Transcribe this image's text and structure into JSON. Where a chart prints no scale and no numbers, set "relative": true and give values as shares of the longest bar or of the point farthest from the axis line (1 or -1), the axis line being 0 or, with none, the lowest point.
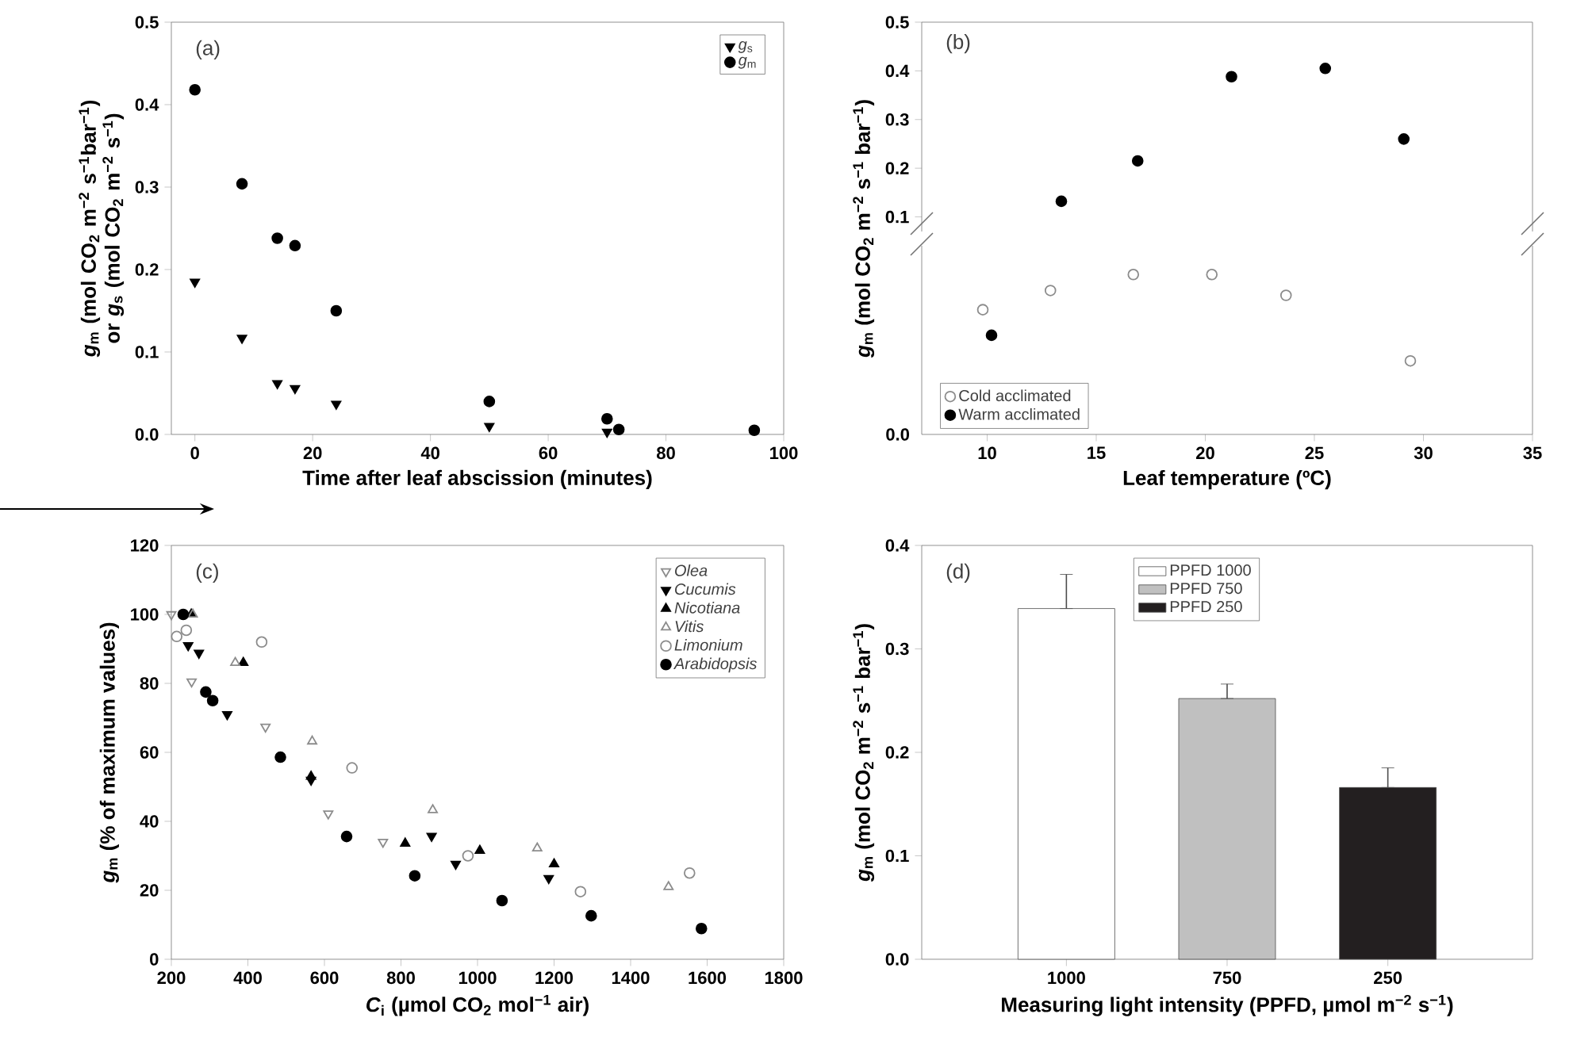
{
  "chart_data": [
    {
      "type": "scatter",
      "annotations": [
        "(a)"
      ],
      "xlabel": "Time after leaf abscission (minutes)",
      "ylabel": "*g*$_{m}$ (mol CO$_{2}$ m$^{−2}$ s$^{−1}$bar$^{−1}$) or *g*$_{s}$ (mol CO$_{2}$ m$^{−2}$ s$^{−1}$)",
      "xlim": [
        -4,
        100
      ],
      "xticks": [
        0,
        20,
        40,
        60,
        80,
        100
      ],
      "ylim": [
        0,
        0.5
      ],
      "yticks": [
        {
          "value": 0,
          "label": "0.0"
        },
        0.1,
        0.2,
        0.3,
        0.4,
        0.5
      ],
      "legend": "top right",
      "series": [
        {
          "name": "*g*$_{s}$",
          "color": "#000000",
          "marker": "triangle-down",
          "x": [
            0,
            8,
            14,
            17,
            24,
            50,
            70
          ],
          "values": [
            0.185,
            0.117,
            0.062,
            0.056,
            0.037,
            0.01,
            0.003
          ]
        },
        {
          "name": "*g*$_{m}$",
          "color": "#000000",
          "marker": "circle",
          "x": [
            0,
            8,
            14,
            17,
            24,
            50,
            70,
            72,
            95
          ],
          "values": [
            0.418,
            0.304,
            0.238,
            0.229,
            0.15,
            0.04,
            0.019,
            0.006,
            0.005
          ]
        }
      ]
    },
    {
      "type": "scatter",
      "annotations": [
        "(b)"
      ],
      "ylabel": "*g*$_{m}$ (mol CO$_{2}$ m$^{−2}$ s$^{−1}$ bar$^{−1}$)",
      "xlim": [
        7,
        35
      ],
      "ylim": [
        0.07,
        0.5
      ],
      "yticks": [
        0.1,
        0.2,
        0.3,
        0.4,
        0.5
      ],
      "tick_labels": "y",
      "series": [
        {
          "color": "#000000",
          "marker": "circle",
          "x": [
            13.4,
            16.9,
            21.2,
            25.5,
            29.1
          ],
          "values": [
            0.132,
            0.215,
            0.388,
            0.405,
            0.26
          ]
        }
      ]
    },
    {
      "type": "scatter",
      "relative": true,
      "annotations": [
        "0.0"
      ],
      "xlabel": "Leaf temperature (ºC)",
      "xlim": [
        7,
        35
      ],
      "xticks": [
        10,
        15,
        20,
        25,
        30,
        35
      ],
      "tick_labels": "x",
      "legend": "bottom left",
      "series": [
        {
          "name": "Cold acclimated",
          "color": "#8c8c8c",
          "marker": "circle-open",
          "x": [
            9.8,
            12.9,
            16.7,
            20.3,
            23.7,
            29.4
          ],
          "values": [
            0.78,
            0.9,
            1,
            1,
            0.87,
            0.46
          ]
        },
        {
          "name": "Warm acclimated",
          "color": "#000000",
          "marker": "circle",
          "x": [
            10.2
          ],
          "values": [
            0.62
          ]
        }
      ]
    },
    {
      "type": "scatter",
      "annotations": [
        "(c)"
      ],
      "xlabel": "*C*$_{i}$ (µmol CO$_{2}$ mol$^{−1}$ air)",
      "ylabel": "*g*$_{m}$ (% of maximum values)",
      "xlim": [
        200,
        1800
      ],
      "xticks": [
        200,
        400,
        600,
        800,
        1000,
        1200,
        1400,
        1600,
        1800
      ],
      "ylim": [
        0,
        120
      ],
      "yticks": [
        0,
        20,
        40,
        60,
        80,
        100,
        120
      ],
      "legend": "top right",
      "series": [
        {
          "name": "Olea",
          "color": "#8c8c8c",
          "marker": "triangle-down-open",
          "x": [
            200,
            253,
            446,
            610,
            753
          ],
          "values": [
            100,
            80.5,
            67.4,
            42.2,
            34
          ]
        },
        {
          "name": "Cucumis",
          "color": "#000000",
          "marker": "triangle-down",
          "x": [
            244,
            272,
            346,
            565,
            880,
            943,
            1186
          ],
          "values": [
            91,
            88.8,
            71,
            52,
            35.7,
            27.6,
            23.5
          ]
        },
        {
          "name": "Nicotiana",
          "color": "#000000",
          "marker": "triangle",
          "x": [
            252,
            388,
            565,
            811,
            1006,
            1200
          ],
          "values": [
            100,
            86,
            53,
            33.6,
            31.5,
            27.6
          ]
        },
        {
          "name": "Vitis",
          "color": "#8c8c8c",
          "marker": "triangle-open",
          "x": [
            256,
            367,
            568,
            883,
            1156,
            1499
          ],
          "values": [
            100,
            86,
            63.2,
            43.3,
            32.2,
            21
          ]
        },
        {
          "name": "Limonium",
          "color": "#8c8c8c",
          "marker": "circle-open",
          "x": [
            214,
            239,
            436,
            672,
            975,
            1269,
            1554
          ],
          "values": [
            93.6,
            95.4,
            92,
            55.5,
            30,
            19.6,
            25
          ]
        },
        {
          "name": "Arabidopsis",
          "color": "#000000",
          "marker": "circle",
          "x": [
            231,
            290,
            308,
            485,
            658,
            836,
            1064,
            1297,
            1585
          ],
          "values": [
            100,
            77.5,
            75,
            58.6,
            35.6,
            24.2,
            17,
            12.6,
            8.9
          ]
        }
      ]
    },
    {
      "type": "bar",
      "annotations": [
        "(d)"
      ],
      "xlabel": "Measuring light intensity (PPFD, µmol m$^{−2}$ s$^{−1}$)",
      "ylabel": "*g*$_{m}$ (mol CO$_{2}$ m$^{−2}$ s$^{−1}$ bar$^{−1}$)",
      "categories": [
        "1000",
        "750",
        "250"
      ],
      "ylim": [
        0,
        0.4
      ],
      "yticks": [
        {
          "value": 0,
          "label": "0.0"
        },
        0.1,
        0.2,
        0.3,
        0.4
      ],
      "legend": "top",
      "series": [
        {
          "name": "PPFD 1000",
          "color": "#ffffff",
          "values": [
            0.339,
            null,
            null
          ],
          "errors": [
            [
              0.339,
              0.372
            ],
            null,
            null
          ]
        },
        {
          "name": "PPFD 750",
          "color": "#c0c0c0",
          "values": [
            null,
            0.252,
            null
          ],
          "errors": [
            null,
            [
              0.252,
              0.266
            ],
            null
          ]
        },
        {
          "name": "PPFD 250",
          "color": "#231f20",
          "values": [
            null,
            null,
            0.166
          ],
          "errors": [
            null,
            null,
            [
              0.166,
              0.185
            ]
          ]
        }
      ]
    }
  ]
}
